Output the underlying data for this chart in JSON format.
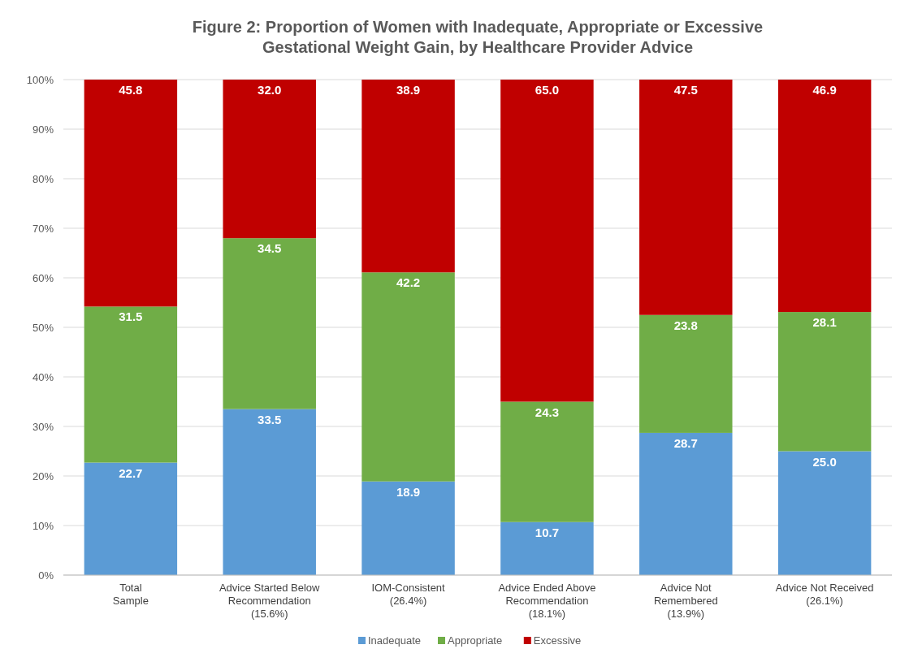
{
  "chart_data": {
    "type": "bar",
    "title": "Figure 2: Proportion of Women with Inadequate, Appropriate or Excessive\nGestational Weight Gain, by Healthcare Provider Advice",
    "categories": [
      "Total\nSample",
      "Advice Started Below\nRecommendation\n(15.6%)",
      "IOM-Consistent\n(26.4%)",
      "Advice Ended Above\nRecommendation\n(18.1%)",
      "Advice Not\nRemembered\n(13.9%)",
      "Advice Not Received\n(26.1%)"
    ],
    "series": [
      {
        "name": "Inadequate",
        "color": "#5b9bd5",
        "values": [
          22.7,
          33.5,
          18.9,
          10.7,
          28.7,
          25.0
        ],
        "value_labels": [
          "22.7",
          "33.5",
          "18.9",
          "10.7",
          "28.7",
          "25.0"
        ]
      },
      {
        "name": "Appropriate",
        "color": "#70ad47",
        "values": [
          31.5,
          34.5,
          42.2,
          24.3,
          23.8,
          28.1
        ],
        "value_labels": [
          "31.5",
          "34.5",
          "42.2",
          "24.3",
          "23.8",
          "28.1"
        ]
      },
      {
        "name": "Excessive",
        "color": "#c00000",
        "values": [
          45.8,
          32.0,
          38.9,
          65.0,
          47.5,
          46.9
        ],
        "value_labels": [
          "45.8",
          "32.0",
          "38.9",
          "65.0",
          "47.5",
          "46.9"
        ]
      }
    ],
    "stacked": true,
    "ylim": [
      0,
      100
    ],
    "yticks": [
      {
        "value": 0,
        "label": "0%"
      },
      {
        "value": 10,
        "label": "10%"
      },
      {
        "value": 20,
        "label": "20%"
      },
      {
        "value": 30,
        "label": "30%"
      },
      {
        "value": 40,
        "label": "40%"
      },
      {
        "value": 50,
        "label": "50%"
      },
      {
        "value": 60,
        "label": "60%"
      },
      {
        "value": 70,
        "label": "70%"
      },
      {
        "value": 80,
        "label": "80%"
      },
      {
        "value": 90,
        "label": "90%"
      },
      {
        "value": 100,
        "label": "100%"
      }
    ],
    "grid": "y",
    "legend": "bottom"
  }
}
